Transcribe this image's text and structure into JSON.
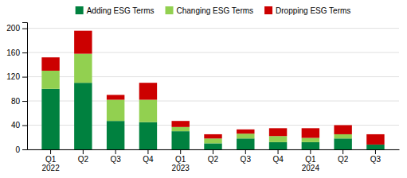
{
  "chart_data": {
    "type": "bar",
    "stacked": true,
    "categories": [
      "Q1\n2022",
      "Q2",
      "Q3",
      "Q4",
      "Q1\n2023",
      "Q2",
      "Q3",
      "Q4",
      "Q1\n2024",
      "Q2",
      "Q3"
    ],
    "series": [
      {
        "name": "Adding ESG Terms",
        "color": "#00813F",
        "values": [
          100,
          110,
          47,
          45,
          30,
          10,
          18,
          12,
          12,
          18,
          8
        ]
      },
      {
        "name": "Changing ESG Terms",
        "color": "#92D050",
        "values": [
          30,
          48,
          35,
          37,
          7,
          8,
          8,
          10,
          7,
          7,
          0
        ]
      },
      {
        "name": "Dropping ESG Terms",
        "color": "#CC0000",
        "values": [
          22,
          38,
          8,
          28,
          10,
          7,
          7,
          13,
          16,
          15,
          17
        ]
      }
    ],
    "ylim": [
      0,
      210
    ],
    "yticks": [
      0,
      40,
      80,
      120,
      160,
      200
    ],
    "grid": true,
    "legend": "top"
  }
}
